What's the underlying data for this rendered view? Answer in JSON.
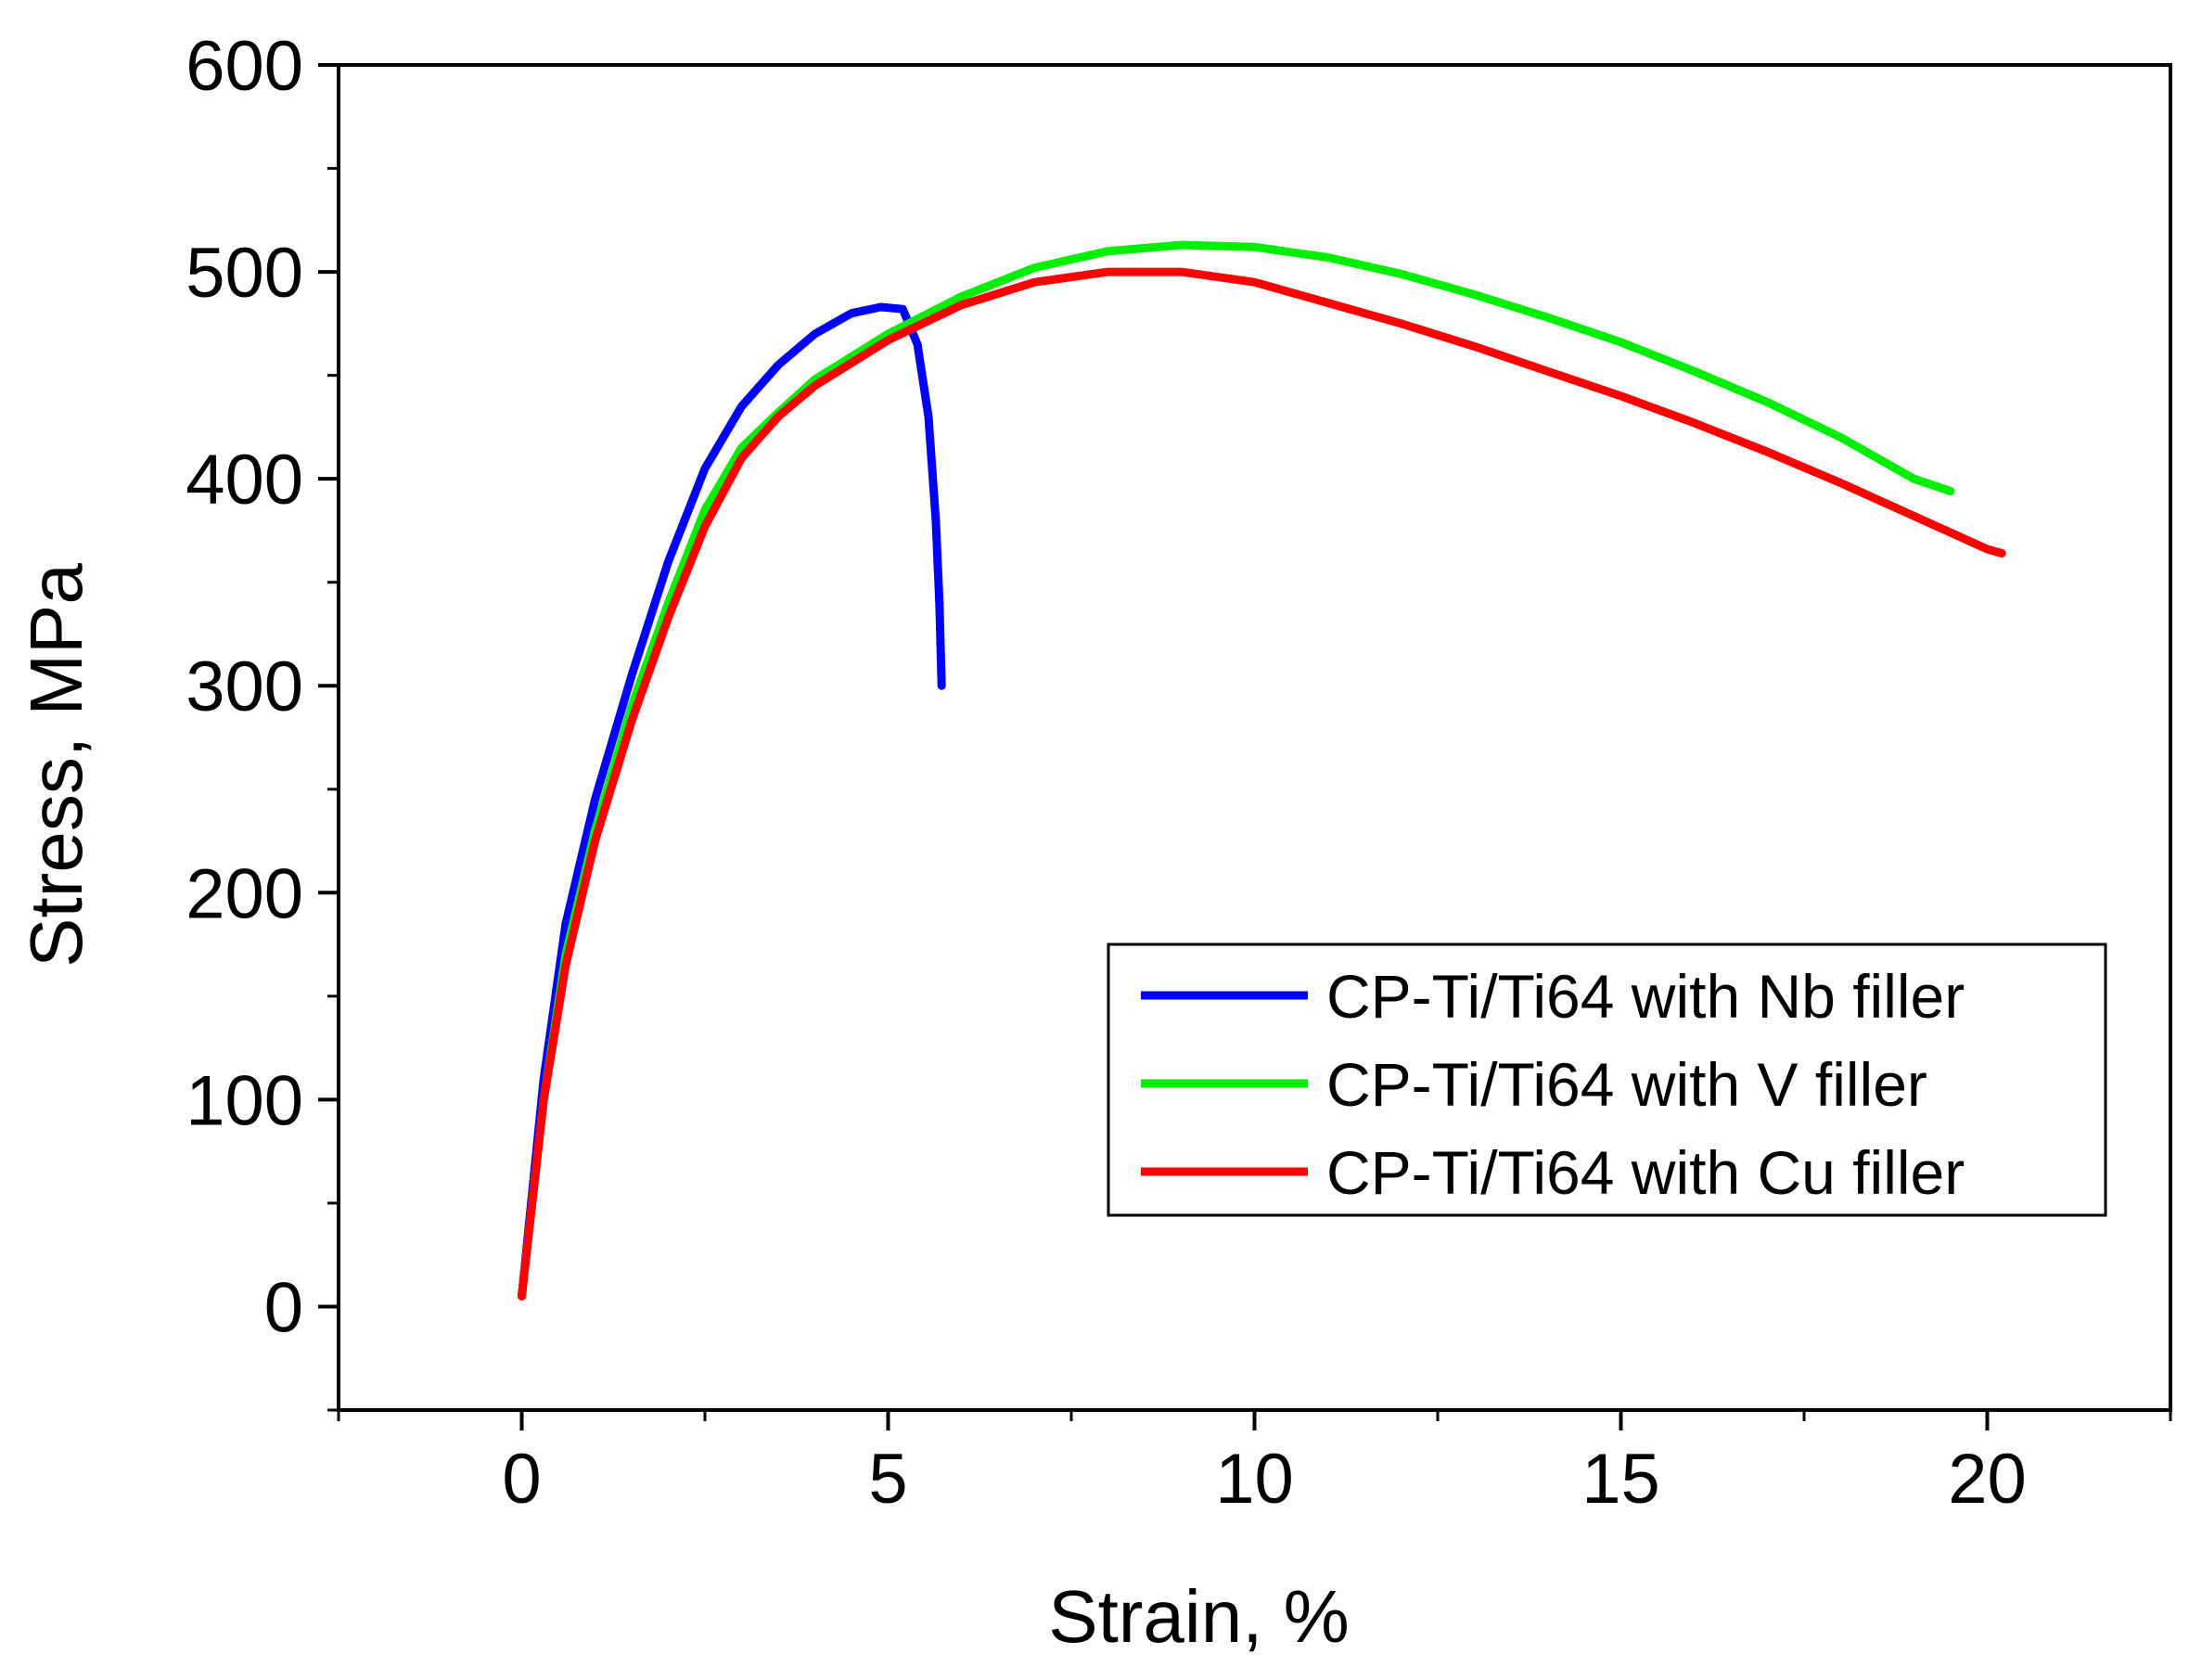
{
  "chart_data": {
    "type": "line",
    "title": "",
    "xlabel": "Strain, %",
    "ylabel": "Stress, MPa",
    "xlim": [
      -2.5,
      22.5
    ],
    "ylim": [
      -50,
      600
    ],
    "xticks": [
      0,
      5,
      10,
      15,
      20
    ],
    "yticks": [
      0,
      100,
      200,
      300,
      400,
      500,
      600
    ],
    "xtick_labels": [
      "0",
      "5",
      "10",
      "15",
      "20"
    ],
    "ytick_labels": [
      "0",
      "100",
      "200",
      "300",
      "400",
      "500",
      "600"
    ],
    "legend_position": "center-right",
    "series": [
      {
        "name": "CP-Ti/Ti64 with Nb filler",
        "color": "#0000ff",
        "x": [
          0,
          0.3,
          0.6,
          1.0,
          1.5,
          2.0,
          2.5,
          3.0,
          3.5,
          4.0,
          4.5,
          4.9,
          5.2,
          5.4,
          5.55,
          5.65,
          5.7,
          5.73
        ],
        "y": [
          5,
          110,
          185,
          245,
          305,
          360,
          405,
          435,
          455,
          470,
          480,
          483,
          482,
          465,
          430,
          380,
          340,
          300
        ]
      },
      {
        "name": "CP-Ti/Ti64 with V filler",
        "color": "#00ee00",
        "x": [
          0,
          0.3,
          0.6,
          1.0,
          1.5,
          2.0,
          2.5,
          3.0,
          3.5,
          4.0,
          5.0,
          6.0,
          7.0,
          8.0,
          9.0,
          10.0,
          11.0,
          12.0,
          13.0,
          14.0,
          15.0,
          16.0,
          17.0,
          18.0,
          19.0,
          19.5
        ],
        "y": [
          5,
          100,
          170,
          230,
          290,
          340,
          385,
          415,
          432,
          448,
          470,
          488,
          502,
          510,
          513,
          512,
          507,
          499,
          489,
          478,
          466,
          452,
          437,
          420,
          400,
          394
        ]
      },
      {
        "name": "CP-Ti/Ti64 with Cu filler",
        "color": "#ff0000",
        "x": [
          0,
          0.3,
          0.6,
          1.0,
          1.5,
          2.0,
          2.5,
          3.0,
          3.5,
          4.0,
          5.0,
          6.0,
          7.0,
          8.0,
          9.0,
          10.0,
          11.0,
          12.0,
          13.0,
          14.0,
          15.0,
          16.0,
          17.0,
          18.0,
          19.0,
          20.0,
          20.2
        ],
        "y": [
          5,
          100,
          165,
          225,
          283,
          333,
          377,
          410,
          430,
          445,
          467,
          484,
          495,
          500,
          500,
          495,
          485,
          475,
          464,
          452,
          440,
          427,
          413,
          398,
          382,
          366,
          364
        ]
      }
    ]
  }
}
